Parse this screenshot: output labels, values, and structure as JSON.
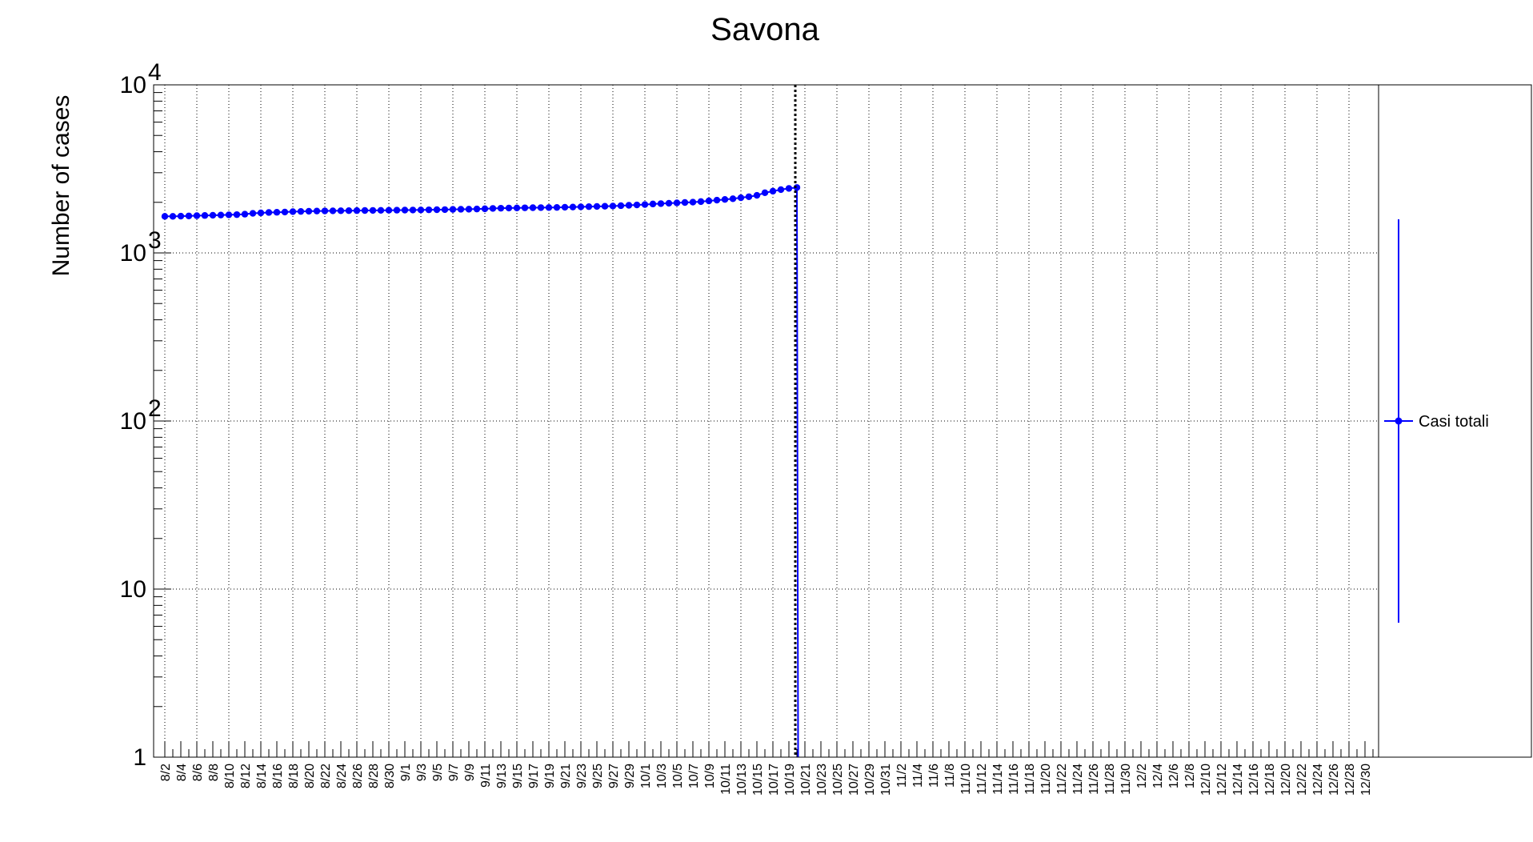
{
  "chart_data": {
    "type": "line",
    "title": "Savona",
    "ylabel": "Number of cases",
    "xlabel": "",
    "y_scale": "log",
    "ylim": [
      1,
      10000
    ],
    "y_tick_labels": [
      {
        "value": 1,
        "label": "1"
      },
      {
        "value": 10,
        "label": "10"
      },
      {
        "value": 100,
        "label": "10",
        "exp": "2"
      },
      {
        "value": 1000,
        "label": "10",
        "exp": "3"
      },
      {
        "value": 10000,
        "label": "10",
        "exp": "4"
      }
    ],
    "xlim": [
      "8/2",
      "1/2"
    ],
    "x_tick_labels": [
      "8/2",
      "8/4",
      "8/6",
      "8/8",
      "8/10",
      "8/12",
      "8/14",
      "8/16",
      "8/18",
      "8/20",
      "8/22",
      "8/24",
      "8/26",
      "8/28",
      "8/30",
      "9/1",
      "9/3",
      "9/5",
      "9/7",
      "9/9",
      "9/11",
      "9/13",
      "9/15",
      "9/17",
      "9/19",
      "9/21",
      "9/23",
      "9/25",
      "9/27",
      "9/29",
      "10/1",
      "10/3",
      "10/5",
      "10/7",
      "10/9",
      "10/11",
      "10/13",
      "10/15",
      "10/17",
      "10/19",
      "10/21",
      "10/23",
      "10/25",
      "10/27",
      "10/29",
      "10/31",
      "11/2",
      "11/4",
      "11/6",
      "11/8",
      "11/10",
      "11/12",
      "11/14",
      "11/16",
      "11/18",
      "11/20",
      "11/22",
      "11/24",
      "11/26",
      "11/28",
      "11/30",
      "12/2",
      "12/4",
      "12/6",
      "12/8",
      "12/10",
      "12/12",
      "12/14",
      "12/16",
      "12/18",
      "12/20",
      "12/22",
      "12/24",
      "12/26",
      "12/28",
      "12/30"
    ],
    "grid": true,
    "legend_position": "right",
    "reference_line": {
      "x": "10/20",
      "style": "dotted",
      "color": "#000000"
    },
    "series": [
      {
        "name": "Casi totali",
        "color": "#0000ff",
        "x": [
          "8/2",
          "8/3",
          "8/4",
          "8/5",
          "8/6",
          "8/7",
          "8/8",
          "8/9",
          "8/10",
          "8/11",
          "8/12",
          "8/13",
          "8/14",
          "8/15",
          "8/16",
          "8/17",
          "8/18",
          "8/19",
          "8/20",
          "8/21",
          "8/22",
          "8/23",
          "8/24",
          "8/25",
          "8/26",
          "8/27",
          "8/28",
          "8/29",
          "8/30",
          "8/31",
          "9/1",
          "9/2",
          "9/3",
          "9/4",
          "9/5",
          "9/6",
          "9/7",
          "9/8",
          "9/9",
          "9/10",
          "9/11",
          "9/12",
          "9/13",
          "9/14",
          "9/15",
          "9/16",
          "9/17",
          "9/18",
          "9/19",
          "9/20",
          "9/21",
          "9/22",
          "9/23",
          "9/24",
          "9/25",
          "9/26",
          "9/27",
          "9/28",
          "9/29",
          "9/30",
          "10/1",
          "10/2",
          "10/3",
          "10/4",
          "10/5",
          "10/6",
          "10/7",
          "10/8",
          "10/9",
          "10/10",
          "10/11",
          "10/12",
          "10/13",
          "10/14",
          "10/15",
          "10/16",
          "10/17",
          "10/18",
          "10/19",
          "10/20"
        ],
        "values": [
          1650,
          1650,
          1655,
          1660,
          1665,
          1670,
          1675,
          1680,
          1685,
          1690,
          1700,
          1720,
          1730,
          1740,
          1745,
          1750,
          1760,
          1765,
          1770,
          1775,
          1778,
          1780,
          1782,
          1784,
          1786,
          1788,
          1790,
          1792,
          1794,
          1796,
          1798,
          1800,
          1802,
          1805,
          1808,
          1810,
          1815,
          1818,
          1820,
          1825,
          1830,
          1840,
          1845,
          1850,
          1852,
          1855,
          1858,
          1860,
          1862,
          1865,
          1870,
          1875,
          1880,
          1885,
          1890,
          1895,
          1900,
          1910,
          1920,
          1930,
          1940,
          1955,
          1965,
          1975,
          1985,
          1995,
          2005,
          2020,
          2040,
          2060,
          2080,
          2100,
          2130,
          2160,
          2200,
          2280,
          2330,
          2380,
          2420,
          2450
        ]
      }
    ]
  }
}
